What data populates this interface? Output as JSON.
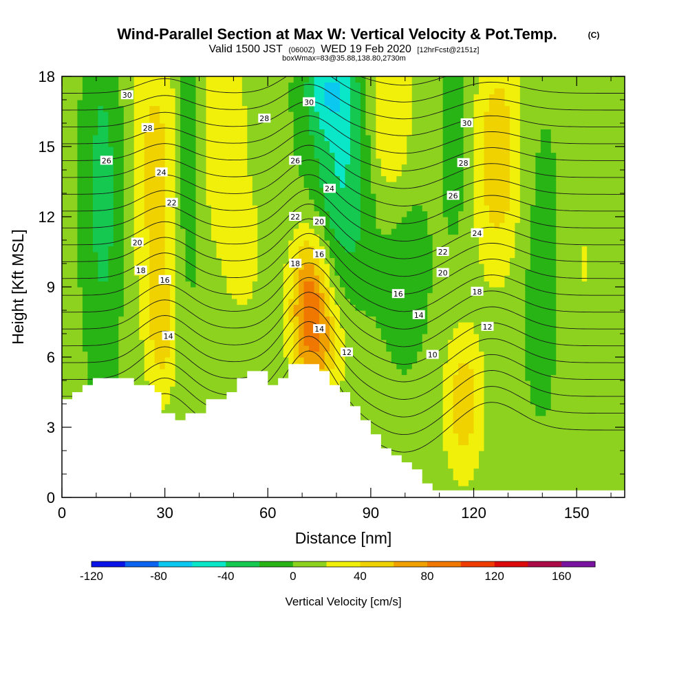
{
  "title": {
    "main": "Wind-Parallel Section at Max W: Vertical Velocity & Pot.Temp.",
    "mark": "(C)",
    "valid_prefix": "Valid 1500 JST",
    "valid_utc": "(0600Z)",
    "valid_date": "WED 19 Feb 2020",
    "forecast": "[12hrFcst@2151z]",
    "box_info": "boxWmax=83@35.88,138.80,2730m"
  },
  "chart_data": {
    "type": "heatmap",
    "xlabel": "Distance [nm]",
    "ylabel": "Height [Kft MSL]",
    "xlim": [
      0,
      164
    ],
    "ylim": [
      0,
      18
    ],
    "x_ticks": [
      0,
      30,
      60,
      90,
      120,
      150
    ],
    "y_ticks": [
      0,
      3,
      6,
      9,
      12,
      15,
      18
    ],
    "field": "Vertical Velocity",
    "colorbar": {
      "title": "Vertical Velocity [cm/s]",
      "levels": [
        -120,
        -100,
        -80,
        -60,
        -40,
        -20,
        0,
        20,
        40,
        60,
        80,
        100,
        120,
        140,
        160,
        180
      ],
      "tick_labels": [
        -120,
        -80,
        -40,
        0,
        40,
        80,
        120,
        160
      ],
      "colors": [
        "#0a14e6",
        "#0a64f0",
        "#0ac8f0",
        "#0ae6c8",
        "#14c850",
        "#28b414",
        "#8cd21e",
        "#f0f00a",
        "#f0d200",
        "#f0a000",
        "#f07800",
        "#f03c00",
        "#dc0a0a",
        "#aa0a46",
        "#7814a0"
      ]
    },
    "terrain_profile": {
      "x": [
        0,
        3,
        6,
        9,
        12,
        15,
        18,
        21,
        24,
        27,
        29,
        30,
        33,
        36,
        39,
        42,
        45,
        48,
        51,
        54,
        57,
        60,
        63,
        66,
        69,
        72,
        75,
        78,
        81,
        84,
        87,
        90,
        93,
        96,
        99,
        102,
        105,
        108,
        111,
        114,
        117,
        120,
        123,
        126,
        129,
        132,
        135,
        138,
        141,
        144,
        147,
        150,
        153,
        156,
        159,
        162
      ],
      "height_kft": [
        4.2,
        4.5,
        4.8,
        5.1,
        5.1,
        5.1,
        5.1,
        4.8,
        4.8,
        4.5,
        3.6,
        3.6,
        3.3,
        3.6,
        3.6,
        4.2,
        4.2,
        4.5,
        5.1,
        5.4,
        5.4,
        4.8,
        5.1,
        5.7,
        5.7,
        5.7,
        5.4,
        4.8,
        4.5,
        3.9,
        3.3,
        2.7,
        2.1,
        1.8,
        1.5,
        1.2,
        0.6,
        0.3,
        0.3,
        0.3,
        0.3,
        0.3,
        0.3,
        0.3,
        0.3,
        0.3,
        0.3,
        0.3,
        0.3,
        0.3,
        0.3,
        0.3,
        0.3,
        0.3,
        0.3,
        0.3
      ]
    },
    "wvel_blobs": [
      {
        "x": 27,
        "y": 14,
        "sx": 5,
        "sy": 4.5,
        "amp": 42
      },
      {
        "x": 29,
        "y": 7,
        "sx": 3,
        "sy": 2.2,
        "amp": 35
      },
      {
        "x": 47,
        "y": 15.5,
        "sx": 5,
        "sy": 3.5,
        "amp": 32
      },
      {
        "x": 53,
        "y": 10.5,
        "sx": 4,
        "sy": 2,
        "amp": 22
      },
      {
        "x": 72,
        "y": 8.5,
        "sx": 4,
        "sy": 2.3,
        "amp": 75
      },
      {
        "x": 76,
        "y": 6.5,
        "sx": 5,
        "sy": 1.8,
        "amp": 40
      },
      {
        "x": 95,
        "y": 16,
        "sx": 5,
        "sy": 3,
        "amp": 42
      },
      {
        "x": 127,
        "y": 14.5,
        "sx": 5,
        "sy": 3.5,
        "amp": 50
      },
      {
        "x": 117,
        "y": 4,
        "sx": 4,
        "sy": 2.2,
        "amp": 48
      },
      {
        "x": 152,
        "y": 10,
        "sx": 5,
        "sy": 4,
        "amp": 15
      },
      {
        "x": 12,
        "y": 13,
        "sx": 4,
        "sy": 5,
        "amp": -35
      },
      {
        "x": 37,
        "y": 15,
        "sx": 2.5,
        "sy": 4,
        "amp": -32
      },
      {
        "x": 82,
        "y": 14,
        "sx": 7,
        "sy": 3.5,
        "amp": -48
      },
      {
        "x": 78,
        "y": 17.5,
        "sx": 5,
        "sy": 1.3,
        "amp": -45
      },
      {
        "x": 100,
        "y": 10,
        "sx": 5,
        "sy": 3,
        "amp": -20
      },
      {
        "x": 115,
        "y": 15.5,
        "sx": 3,
        "sy": 3,
        "amp": -20
      },
      {
        "x": 140,
        "y": 10,
        "sx": 5,
        "sy": 5,
        "amp": -15
      }
    ],
    "isentropes": {
      "levels": [
        10,
        11,
        12,
        13,
        14,
        15,
        16,
        17,
        18,
        19,
        20,
        21,
        22,
        23,
        24,
        25,
        26,
        27,
        28,
        29,
        30,
        31,
        32
      ],
      "labeled_levels": [
        10,
        12,
        14,
        16,
        18,
        20,
        22,
        24,
        26,
        28,
        30
      ]
    },
    "contour_labels": [
      {
        "text": "30",
        "x": 19,
        "y": 17.2
      },
      {
        "text": "28",
        "x": 25,
        "y": 15.8
      },
      {
        "text": "26",
        "x": 13,
        "y": 14.4
      },
      {
        "text": "24",
        "x": 29,
        "y": 13.9
      },
      {
        "text": "22",
        "x": 32,
        "y": 12.6
      },
      {
        "text": "20",
        "x": 22,
        "y": 10.9
      },
      {
        "text": "18",
        "x": 23,
        "y": 9.7
      },
      {
        "text": "16",
        "x": 30,
        "y": 9.3
      },
      {
        "text": "14",
        "x": 31,
        "y": 6.9
      },
      {
        "text": "28",
        "x": 59,
        "y": 16.2
      },
      {
        "text": "26",
        "x": 68,
        "y": 14.4
      },
      {
        "text": "30",
        "x": 72,
        "y": 16.9
      },
      {
        "text": "24",
        "x": 78,
        "y": 13.2
      },
      {
        "text": "22",
        "x": 68,
        "y": 12.0
      },
      {
        "text": "20",
        "x": 75,
        "y": 11.8
      },
      {
        "text": "18",
        "x": 68,
        "y": 10.0
      },
      {
        "text": "16",
        "x": 75,
        "y": 10.4
      },
      {
        "text": "14",
        "x": 75,
        "y": 7.2
      },
      {
        "text": "12",
        "x": 83,
        "y": 6.2
      },
      {
        "text": "30",
        "x": 118,
        "y": 16.0
      },
      {
        "text": "28",
        "x": 117,
        "y": 14.3
      },
      {
        "text": "26",
        "x": 114,
        "y": 12.9
      },
      {
        "text": "24",
        "x": 121,
        "y": 11.3
      },
      {
        "text": "22",
        "x": 111,
        "y": 10.5
      },
      {
        "text": "20",
        "x": 111,
        "y": 9.6
      },
      {
        "text": "18",
        "x": 121,
        "y": 8.8
      },
      {
        "text": "16",
        "x": 98,
        "y": 8.7
      },
      {
        "text": "14",
        "x": 104,
        "y": 7.8
      },
      {
        "text": "12",
        "x": 124,
        "y": 7.3
      },
      {
        "text": "10",
        "x": 108,
        "y": 6.1
      }
    ],
    "grid": false
  }
}
